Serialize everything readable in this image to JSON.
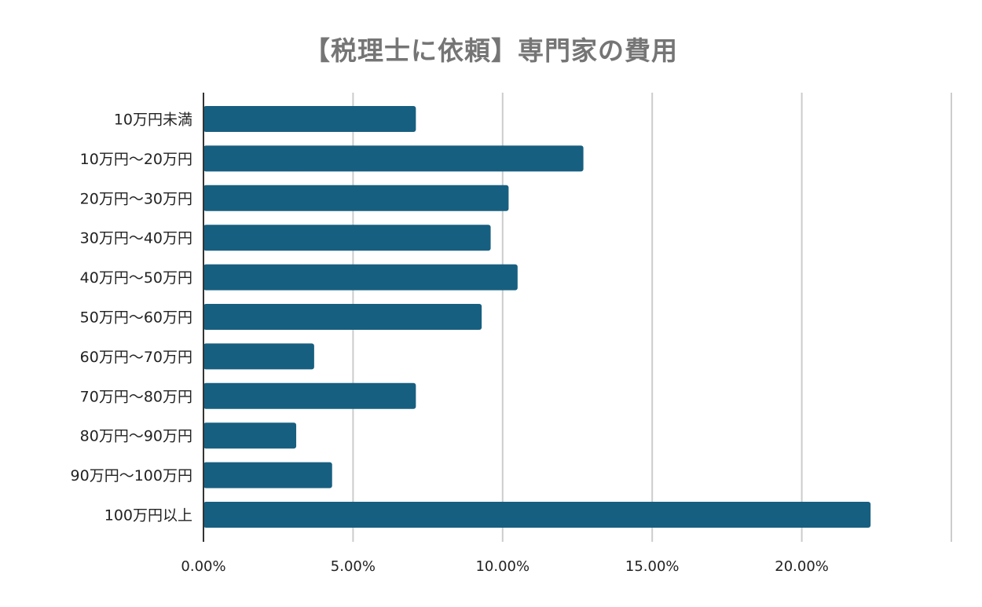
{
  "chart_data": {
    "type": "bar",
    "orientation": "horizontal",
    "title": "【税理士に依頼】専門家の費用",
    "xlabel": "",
    "ylabel": "",
    "categories": [
      "10万円未満",
      "10万円～20万円",
      "20万円～30万円",
      "30万円～40万円",
      "40万円～50万円",
      "50万円～60万円",
      "60万円～70万円",
      "70万円～80万円",
      "80万円～90万円",
      "90万円～100万円",
      "100万円以上"
    ],
    "values": [
      7.1,
      12.7,
      10.2,
      9.6,
      10.5,
      9.3,
      3.7,
      7.1,
      3.1,
      4.3,
      22.3
    ],
    "xlim": [
      0,
      25
    ],
    "xticks": [
      0,
      5,
      10,
      15,
      20,
      25
    ],
    "xtick_labels": [
      "0.00%",
      "5.00%",
      "10.00%",
      "15.00%",
      "20.00%",
      ""
    ],
    "grid": "vertical",
    "legend": "none",
    "colors": {
      "bar": "#175f80",
      "grid": "#cccccc",
      "axis": "#333333",
      "title": "#757575",
      "text": "#222222"
    }
  }
}
